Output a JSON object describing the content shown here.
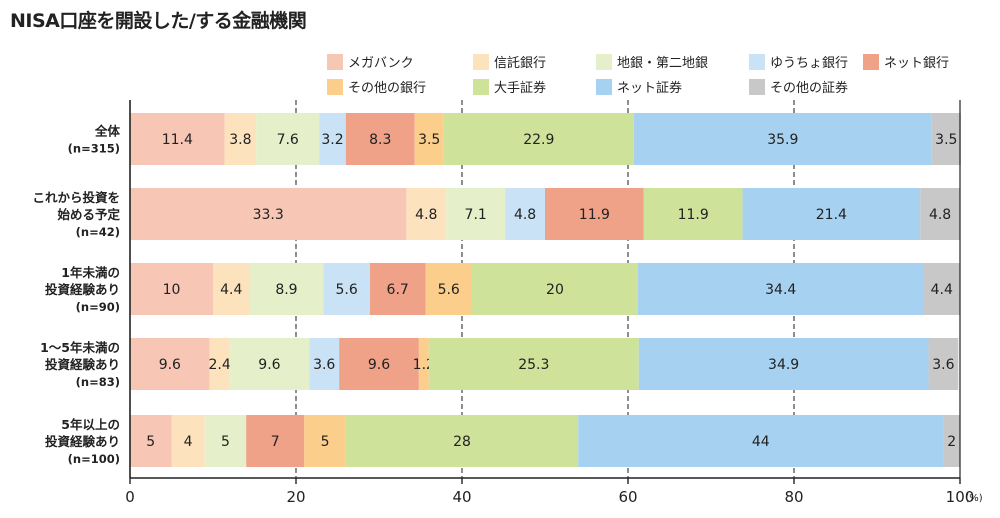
{
  "title": "NISA口座を開設した/する金融機関",
  "chart_data": {
    "type": "bar",
    "stacked": true,
    "orientation": "horizontal",
    "xlim": [
      0,
      100
    ],
    "x_ticks": [
      "0",
      "20",
      "40",
      "60",
      "80",
      "100"
    ],
    "x_unit": "(%)",
    "grid": true,
    "legend_position": "top-right",
    "categories": [
      {
        "lines": [
          "全体"
        ],
        "n": "(n=315)"
      },
      {
        "lines": [
          "これから投資を",
          "始める予定"
        ],
        "n": "(n=42)"
      },
      {
        "lines": [
          "1年未満の",
          "投資経験あり"
        ],
        "n": "(n=90)"
      },
      {
        "lines": [
          "1～5年未満の",
          "投資経験あり"
        ],
        "n": "(n=83)"
      },
      {
        "lines": [
          "5年以上の",
          "投資経験あり"
        ],
        "n": "(n=100)"
      }
    ],
    "series": [
      {
        "name": "メガバンク",
        "color": "#f7c6b5",
        "values": [
          "11.4",
          "33.3",
          "10",
          "9.6",
          "5"
        ]
      },
      {
        "name": "信託銀行",
        "color": "#fde3bd",
        "values": [
          "3.8",
          "4.8",
          "4.4",
          "2.4",
          "4"
        ]
      },
      {
        "name": "地銀・第二地銀",
        "color": "#e5efc9",
        "values": [
          "7.6",
          "7.1",
          "8.9",
          "9.6",
          "5"
        ]
      },
      {
        "name": "ゆうちょ銀行",
        "color": "#c9e2f5",
        "values": [
          "3.2",
          "4.8",
          "5.6",
          "3.6",
          "0"
        ]
      },
      {
        "name": "ネット銀行",
        "color": "#f0a288",
        "values": [
          "8.3",
          "11.9",
          "6.7",
          "9.6",
          "7"
        ]
      },
      {
        "name": "その他の銀行",
        "color": "#fbce8c",
        "values": [
          "3.5",
          "0",
          "5.6",
          "1.2",
          "5"
        ]
      },
      {
        "name": "大手証券",
        "color": "#cfe29a",
        "values": [
          "22.9",
          "11.9",
          "20",
          "25.3",
          "28"
        ]
      },
      {
        "name": "ネット証券",
        "color": "#a7d1f0",
        "values": [
          "35.9",
          "21.4",
          "34.4",
          "34.9",
          "44"
        ]
      },
      {
        "name": "その他の証券",
        "color": "#c8c8c8",
        "values": [
          "3.5",
          "4.8",
          "4.4",
          "3.6",
          "2"
        ]
      }
    ]
  }
}
